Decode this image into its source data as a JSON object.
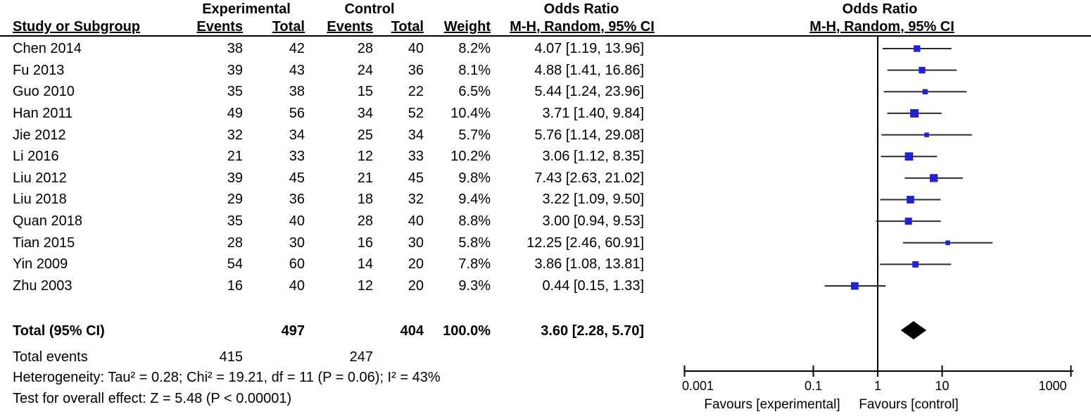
{
  "headers": {
    "group_experimental": "Experimental",
    "group_control": "Control",
    "odds_ratio": "Odds Ratio",
    "study": "Study or Subgroup",
    "events": "Events",
    "total": "Total",
    "weight": "Weight",
    "method": "M-H, Random, 95% CI"
  },
  "chart_data": {
    "type": "forest",
    "effect_measure": "Odds Ratio",
    "method": "M-H, Random, 95% CI",
    "x_scale": "log",
    "axis": {
      "range": [
        0.001,
        1000
      ],
      "ticks": [
        0.001,
        0.1,
        1,
        10,
        1000
      ],
      "tick_labels": [
        "0.001",
        "0.1",
        "1",
        "10",
        "1000"
      ],
      "favours_left": "Favours [experimental]",
      "favours_right": "Favours [control]"
    },
    "studies": [
      {
        "name": "Chen 2014",
        "exp_events": 38,
        "exp_total": 42,
        "ctrl_events": 28,
        "ctrl_total": 40,
        "weight_label": "8.2%",
        "weight_pct": 8.2,
        "or": 4.07,
        "ci_low": 1.19,
        "ci_high": 13.96,
        "or_label": "4.07 [1.19, 13.96]"
      },
      {
        "name": "Fu 2013",
        "exp_events": 39,
        "exp_total": 43,
        "ctrl_events": 24,
        "ctrl_total": 36,
        "weight_label": "8.1%",
        "weight_pct": 8.1,
        "or": 4.88,
        "ci_low": 1.41,
        "ci_high": 16.86,
        "or_label": "4.88 [1.41, 16.86]"
      },
      {
        "name": "Guo 2010",
        "exp_events": 35,
        "exp_total": 38,
        "ctrl_events": 15,
        "ctrl_total": 22,
        "weight_label": "6.5%",
        "weight_pct": 6.5,
        "or": 5.44,
        "ci_low": 1.24,
        "ci_high": 23.96,
        "or_label": "5.44 [1.24, 23.96]"
      },
      {
        "name": "Han 2011",
        "exp_events": 49,
        "exp_total": 56,
        "ctrl_events": 34,
        "ctrl_total": 52,
        "weight_label": "10.4%",
        "weight_pct": 10.4,
        "or": 3.71,
        "ci_low": 1.4,
        "ci_high": 9.84,
        "or_label": "3.71 [1.40, 9.84]"
      },
      {
        "name": "Jie 2012",
        "exp_events": 32,
        "exp_total": 34,
        "ctrl_events": 25,
        "ctrl_total": 34,
        "weight_label": "5.7%",
        "weight_pct": 5.7,
        "or": 5.76,
        "ci_low": 1.14,
        "ci_high": 29.08,
        "or_label": "5.76 [1.14, 29.08]"
      },
      {
        "name": "Li 2016",
        "exp_events": 21,
        "exp_total": 33,
        "ctrl_events": 12,
        "ctrl_total": 33,
        "weight_label": "10.2%",
        "weight_pct": 10.2,
        "or": 3.06,
        "ci_low": 1.12,
        "ci_high": 8.35,
        "or_label": "3.06 [1.12, 8.35]"
      },
      {
        "name": "Liu 2012",
        "exp_events": 39,
        "exp_total": 45,
        "ctrl_events": 21,
        "ctrl_total": 45,
        "weight_label": "9.8%",
        "weight_pct": 9.8,
        "or": 7.43,
        "ci_low": 2.63,
        "ci_high": 21.02,
        "or_label": "7.43 [2.63, 21.02]"
      },
      {
        "name": "Liu 2018",
        "exp_events": 29,
        "exp_total": 36,
        "ctrl_events": 18,
        "ctrl_total": 32,
        "weight_label": "9.4%",
        "weight_pct": 9.4,
        "or": 3.22,
        "ci_low": 1.09,
        "ci_high": 9.5,
        "or_label": "3.22 [1.09, 9.50]"
      },
      {
        "name": "Quan 2018",
        "exp_events": 35,
        "exp_total": 40,
        "ctrl_events": 28,
        "ctrl_total": 40,
        "weight_label": "8.8%",
        "weight_pct": 8.8,
        "or": 3.0,
        "ci_low": 0.94,
        "ci_high": 9.53,
        "or_label": "3.00 [0.94, 9.53]"
      },
      {
        "name": "Tian 2015",
        "exp_events": 28,
        "exp_total": 30,
        "ctrl_events": 16,
        "ctrl_total": 30,
        "weight_label": "5.8%",
        "weight_pct": 5.8,
        "or": 12.25,
        "ci_low": 2.46,
        "ci_high": 60.91,
        "or_label": "12.25 [2.46, 60.91]"
      },
      {
        "name": "Yin 2009",
        "exp_events": 54,
        "exp_total": 60,
        "ctrl_events": 14,
        "ctrl_total": 20,
        "weight_label": "7.8%",
        "weight_pct": 7.8,
        "or": 3.86,
        "ci_low": 1.08,
        "ci_high": 13.81,
        "or_label": "3.86 [1.08, 13.81]"
      },
      {
        "name": "Zhu 2003",
        "exp_events": 16,
        "exp_total": 40,
        "ctrl_events": 12,
        "ctrl_total": 20,
        "weight_label": "9.3%",
        "weight_pct": 9.3,
        "or": 0.44,
        "ci_low": 0.15,
        "ci_high": 1.33,
        "or_label": "0.44 [0.15, 1.33]"
      }
    ],
    "total": {
      "label": "Total (95% CI)",
      "exp_total": 497,
      "ctrl_total": 404,
      "weight_label": "100.0%",
      "or": 3.6,
      "ci_low": 2.28,
      "ci_high": 5.7,
      "or_label": "3.60 [2.28, 5.70]"
    },
    "total_events": {
      "label": "Total events",
      "exp_events": 415,
      "ctrl_events": 247
    },
    "heterogeneity": "Heterogeneity: Tau² = 0.28; Chi² = 19.21, df = 11 (P = 0.06); I² = 43%",
    "overall_effect": "Test for overall effect: Z = 5.48 (P < 0.00001)",
    "colors": {
      "marker": "#2323CE",
      "diamond": "#000000",
      "ci_line": "#2b2b2b",
      "axis": "#000000"
    }
  }
}
